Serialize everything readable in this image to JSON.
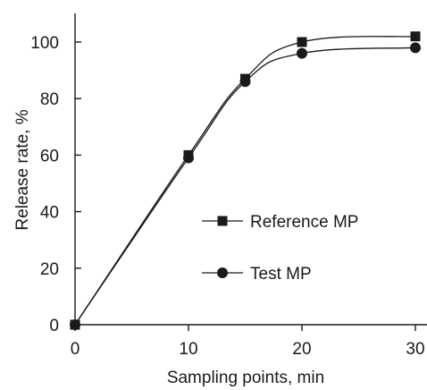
{
  "chart_data": {
    "type": "line",
    "title": "",
    "xlabel": "Sampling points, min",
    "ylabel": "Release rate, %",
    "xlim": [
      0,
      30
    ],
    "ylim": [
      0,
      100
    ],
    "x_ticks": [
      0,
      10,
      20,
      30
    ],
    "y_ticks": [
      0,
      20,
      40,
      60,
      80,
      100
    ],
    "grid": false,
    "legend_position": "center-right",
    "series": [
      {
        "name": "Reference MP",
        "marker": "square",
        "color": "#1a1a1a",
        "x": [
          0,
          10,
          15,
          20,
          30
        ],
        "y": [
          0,
          60,
          87,
          100,
          102
        ]
      },
      {
        "name": "Test MP",
        "marker": "circle",
        "color": "#1a1a1a",
        "x": [
          0,
          10,
          15,
          20,
          30
        ],
        "y": [
          0,
          59,
          86,
          96,
          98
        ]
      }
    ]
  }
}
